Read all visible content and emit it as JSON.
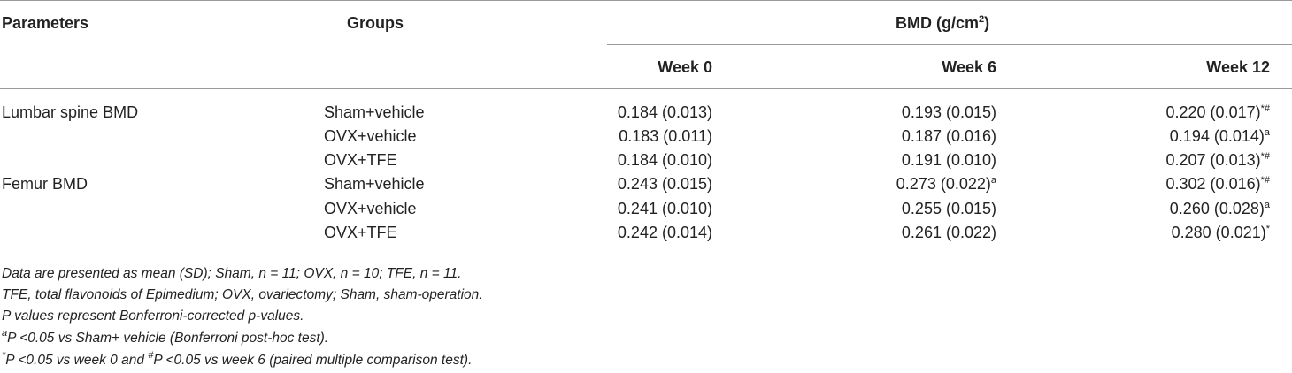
{
  "table": {
    "headers": {
      "parameters": "Parameters",
      "groups": "Groups",
      "bmd_main": "BMD (g/cm",
      "bmd_sup": "2",
      "bmd_close": ")",
      "week0": "Week 0",
      "week6": "Week 6",
      "week12": "Week 12"
    },
    "rows": [
      {
        "param": "Lumbar spine BMD",
        "group": "Sham+vehicle",
        "w0": "0.184 (0.013)",
        "w0s": "",
        "w6": "0.193 (0.015)",
        "w6s": "",
        "w12": "0.220 (0.017)",
        "w12s": "*#"
      },
      {
        "param": "",
        "group": "OVX+vehicle",
        "w0": "0.183 (0.011)",
        "w0s": "",
        "w6": "0.187 (0.016)",
        "w6s": "",
        "w12": "0.194 (0.014)",
        "w12s": "a"
      },
      {
        "param": "",
        "group": "OVX+TFE",
        "w0": "0.184 (0.010)",
        "w0s": "",
        "w6": "0.191 (0.010)",
        "w6s": "",
        "w12": "0.207 (0.013)",
        "w12s": "*#"
      },
      {
        "param": "Femur BMD",
        "group": "Sham+vehicle",
        "w0": "0.243 (0.015)",
        "w0s": "",
        "w6": "0.273 (0.022)",
        "w6s": "a",
        "w12": "0.302 (0.016)",
        "w12s": "*#"
      },
      {
        "param": "",
        "group": "OVX+vehicle",
        "w0": "0.241 (0.010)",
        "w0s": "",
        "w6": "0.255 (0.015)",
        "w6s": "",
        "w12": "0.260 (0.028)",
        "w12s": "a"
      },
      {
        "param": "",
        "group": "OVX+TFE",
        "w0": "0.242 (0.014)",
        "w0s": "",
        "w6": "0.261 (0.022)",
        "w6s": "",
        "w12": "0.280 (0.021)",
        "w12s": "*"
      }
    ]
  },
  "footnotes": {
    "line1": "Data are presented as mean  (SD); Sham, n = 11; OVX, n = 10; TFE, n = 11.",
    "line2": "TFE, total flavonoids of Epimedium; OVX, ovariectomy; Sham, sham-operation.",
    "line3": "P values represent Bonferroni-corrected p-values.",
    "line4_sup": "a",
    "line4": "P <0.05 vs Sham+ vehicle  (Bonferroni post-hoc test).",
    "line5_sup1": "*",
    "line5_a": "P <0.05 vs week 0 and ",
    "line5_sup2": "#",
    "line5_b": "P <0.05 vs week 6  (paired multiple comparison test)."
  }
}
